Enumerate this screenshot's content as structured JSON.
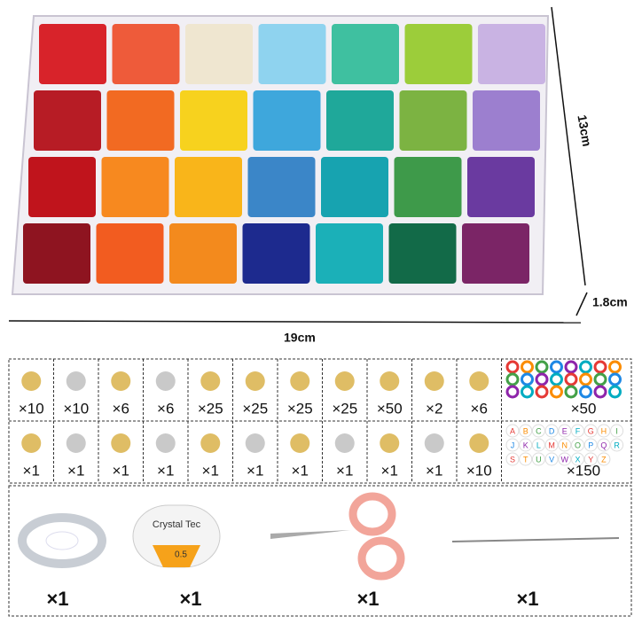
{
  "dimensions": {
    "height": "13cm",
    "depth": "1.8cm",
    "width": "19cm"
  },
  "accessories": {
    "rows": [
      {
        "quantities": [
          "×10",
          "×10",
          "×6",
          "×6",
          "×25",
          "×25",
          "×25",
          "×25",
          "×50",
          "×2",
          "×6",
          "×50"
        ]
      },
      {
        "quantities": [
          "×1",
          "×1",
          "×1",
          "×1",
          "×1",
          "×1",
          "×1",
          "×1",
          "×1",
          "×1",
          "×10",
          "×150"
        ]
      }
    ]
  },
  "letter_beads": [
    "A",
    "B",
    "C",
    "D",
    "E",
    "F",
    "G",
    "H",
    "I",
    "J",
    "K",
    "L",
    "M",
    "N",
    "O",
    "P",
    "Q",
    "R",
    "S",
    "T",
    "U",
    "V",
    "W",
    "X",
    "Y",
    "Z"
  ],
  "spool": {
    "brand": "Crystal Tec",
    "size": "0.5"
  },
  "tools": [
    "×1",
    "×1",
    "×1",
    "×1"
  ]
}
